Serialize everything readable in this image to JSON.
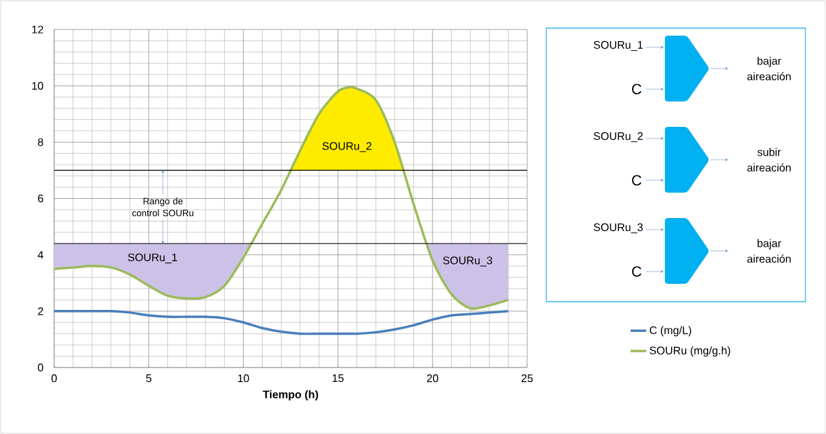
{
  "chart_data": {
    "type": "line",
    "xlabel": "Tiempo (h)",
    "xlim": [
      0,
      25
    ],
    "xticks": [
      0,
      5,
      10,
      15,
      20,
      25
    ],
    "ylim": [
      0,
      12
    ],
    "yticks": [
      0,
      2,
      4,
      6,
      8,
      10,
      12
    ],
    "grid": true,
    "legend": "right",
    "series": [
      {
        "name": "C (mg/L)",
        "color": "#4a7ebb",
        "x": [
          0,
          1,
          2,
          3,
          4,
          5,
          6,
          7,
          8,
          9,
          10,
          11,
          12,
          13,
          14,
          15,
          16,
          17,
          18,
          19,
          20,
          21,
          22,
          23,
          24
        ],
        "values": [
          2.0,
          2.0,
          2.0,
          2.0,
          1.95,
          1.85,
          1.8,
          1.8,
          1.8,
          1.75,
          1.6,
          1.4,
          1.27,
          1.2,
          1.2,
          1.2,
          1.2,
          1.25,
          1.35,
          1.5,
          1.7,
          1.85,
          1.9,
          1.95,
          2.0
        ]
      },
      {
        "name": "SOURu (mg/g.h)",
        "color": "#9bbb59",
        "x": [
          0,
          1,
          2,
          3,
          4,
          5,
          6,
          7,
          8,
          9,
          10,
          11,
          12,
          13,
          14,
          15,
          15.6,
          16,
          17,
          18,
          19,
          20,
          21,
          22,
          23,
          24
        ],
        "values": [
          3.5,
          3.55,
          3.6,
          3.55,
          3.3,
          2.9,
          2.55,
          2.45,
          2.5,
          2.9,
          3.9,
          5.1,
          6.3,
          7.7,
          9.0,
          9.8,
          9.95,
          9.9,
          9.5,
          8.0,
          5.8,
          3.8,
          2.6,
          2.1,
          2.2,
          2.4
        ]
      },
      {
        "name": "SOURu_1",
        "type": "area",
        "color": "#ccc1e6",
        "x": [
          0,
          0,
          1,
          2,
          3,
          4,
          5,
          6,
          7,
          8,
          9,
          10,
          10.4
        ],
        "values": [
          4.4,
          3.5,
          3.55,
          3.6,
          3.55,
          3.3,
          2.9,
          2.55,
          2.45,
          2.5,
          2.9,
          3.9,
          4.4
        ]
      },
      {
        "name": "SOURu_2",
        "type": "area",
        "color": "#ffeb00",
        "x": [
          12.5,
          13,
          14,
          15,
          15.6,
          16,
          17,
          18,
          18.45
        ],
        "values": [
          7,
          7.7,
          9.0,
          9.8,
          9.95,
          9.9,
          9.5,
          8.0,
          7
        ]
      },
      {
        "name": "SOURu_3",
        "type": "area",
        "color": "#ccc1e6",
        "x": [
          19.7,
          20,
          21,
          22,
          23,
          24,
          24
        ],
        "values": [
          4.4,
          3.8,
          2.6,
          2.1,
          2.2,
          2.4,
          4.4
        ]
      }
    ],
    "ref_lines": [
      {
        "axis": "y",
        "value": 7,
        "label": "Rango de control SOURu",
        "color": "#000000"
      },
      {
        "axis": "y",
        "value": 4.4,
        "color": "#000000"
      }
    ],
    "annotations": [
      "SOURu_1",
      "C",
      "bajar aireación",
      "SOURu_2",
      "C",
      "subir aireación",
      "SOURu_3",
      "C",
      "bajar aireación"
    ]
  }
}
